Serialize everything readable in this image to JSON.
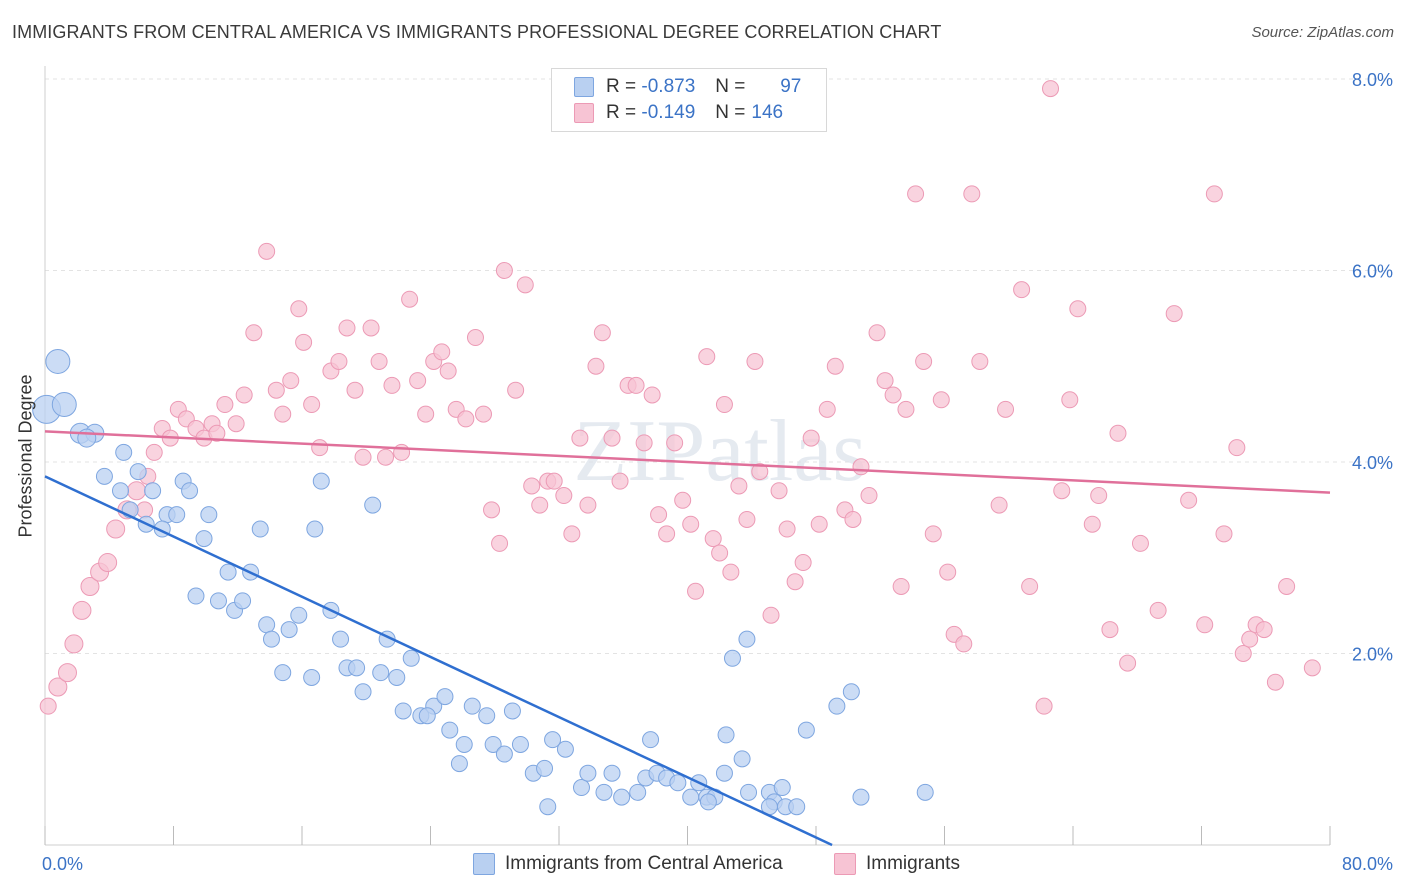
{
  "title": "IMMIGRANTS FROM CENTRAL AMERICA VS IMMIGRANTS PROFESSIONAL DEGREE CORRELATION CHART",
  "source": "Source: ZipAtlas.com",
  "legend": {
    "rows": [
      {
        "r_label": "R =",
        "r_value": "-0.873",
        "n_label": "N =",
        "n_value": "97"
      },
      {
        "r_label": "R =",
        "r_value": "-0.149",
        "n_label": "N =",
        "n_value": "146"
      }
    ]
  },
  "bottom_legend": [
    "Immigrants from Central America",
    "Immigrants"
  ],
  "watermark": "ZIPatlas",
  "chart_data": {
    "type": "scatter",
    "ylabel": "Professional Degree",
    "xlabel": "",
    "x_tick_labels": [
      "0.0%",
      "80.0%"
    ],
    "y_tick_labels": [
      "2.0%",
      "4.0%",
      "6.0%",
      "8.0%"
    ],
    "xlim": [
      0,
      80
    ],
    "ylim": [
      0,
      8
    ],
    "grid": true,
    "legend_position": "top-center",
    "colors": {
      "blue_fill": "#b9d0f1",
      "blue_stroke": "#7ea6e0",
      "blue_line": "#2f6fd0",
      "pink_fill": "#f7c4d4",
      "pink_stroke": "#ec9ab5",
      "pink_line": "#e0709a",
      "tick_text": "#3b73c6"
    },
    "series": [
      {
        "name": "Immigrants from Central America",
        "trend": {
          "x": [
            0,
            49
          ],
          "y": [
            3.85,
            0.0
          ]
        },
        "points": [
          [
            0.1,
            4.55,
            14
          ],
          [
            0.8,
            5.05,
            12
          ],
          [
            1.2,
            4.6,
            12
          ],
          [
            2.2,
            4.3,
            10
          ],
          [
            3.1,
            4.3,
            9
          ],
          [
            2.6,
            4.25,
            9
          ],
          [
            4.9,
            4.1,
            8
          ],
          [
            3.7,
            3.85,
            8
          ],
          [
            5.8,
            3.9,
            8
          ],
          [
            6.7,
            3.7,
            8
          ],
          [
            7.6,
            3.45,
            8
          ],
          [
            4.7,
            3.7,
            8
          ],
          [
            5.3,
            3.5,
            8
          ],
          [
            8.6,
            3.8,
            8
          ],
          [
            9.0,
            3.7,
            8
          ],
          [
            8.2,
            3.45,
            8
          ],
          [
            10.2,
            3.45,
            8
          ],
          [
            6.3,
            3.35,
            8
          ],
          [
            7.3,
            3.3,
            8
          ],
          [
            13.4,
            3.3,
            8
          ],
          [
            16.8,
            3.3,
            8
          ],
          [
            17.2,
            3.8,
            8
          ],
          [
            20.4,
            3.55,
            8
          ],
          [
            9.4,
            2.6,
            8
          ],
          [
            9.9,
            3.2,
            8
          ],
          [
            11.4,
            2.85,
            8
          ],
          [
            12.8,
            2.85,
            8
          ],
          [
            10.8,
            2.55,
            8
          ],
          [
            11.8,
            2.45,
            8
          ],
          [
            12.3,
            2.55,
            8
          ],
          [
            13.8,
            2.3,
            8
          ],
          [
            14.1,
            2.15,
            8
          ],
          [
            15.2,
            2.25,
            8
          ],
          [
            15.8,
            2.4,
            8
          ],
          [
            17.8,
            2.45,
            8
          ],
          [
            18.4,
            2.15,
            8
          ],
          [
            14.8,
            1.8,
            8
          ],
          [
            16.6,
            1.75,
            8
          ],
          [
            18.8,
            1.85,
            8
          ],
          [
            19.4,
            1.85,
            8
          ],
          [
            20.9,
            1.8,
            8
          ],
          [
            21.9,
            1.75,
            8
          ],
          [
            21.3,
            2.15,
            8
          ],
          [
            22.8,
            1.95,
            8
          ],
          [
            19.8,
            1.6,
            8
          ],
          [
            22.3,
            1.4,
            8
          ],
          [
            23.4,
            1.35,
            8
          ],
          [
            24.2,
            1.45,
            8
          ],
          [
            24.9,
            1.55,
            8
          ],
          [
            23.8,
            1.35,
            8
          ],
          [
            25.2,
            1.2,
            8
          ],
          [
            26.6,
            1.45,
            8
          ],
          [
            27.5,
            1.35,
            8
          ],
          [
            29.1,
            1.4,
            8
          ],
          [
            26.1,
            1.05,
            8
          ],
          [
            27.9,
            1.05,
            8
          ],
          [
            28.6,
            0.95,
            8
          ],
          [
            29.6,
            1.05,
            8
          ],
          [
            25.8,
            0.85,
            8
          ],
          [
            30.4,
            0.75,
            8
          ],
          [
            31.1,
            0.8,
            8
          ],
          [
            31.6,
            1.1,
            8
          ],
          [
            32.4,
            1.0,
            8
          ],
          [
            33.4,
            0.6,
            8
          ],
          [
            33.8,
            0.75,
            8
          ],
          [
            34.8,
            0.55,
            8
          ],
          [
            35.3,
            0.75,
            8
          ],
          [
            35.9,
            0.5,
            8
          ],
          [
            36.9,
            0.55,
            8
          ],
          [
            37.4,
            0.7,
            8
          ],
          [
            38.1,
            0.75,
            8
          ],
          [
            38.7,
            0.7,
            8
          ],
          [
            39.4,
            0.65,
            8
          ],
          [
            40.2,
            0.5,
            8
          ],
          [
            40.7,
            0.65,
            8
          ],
          [
            41.2,
            0.5,
            8
          ],
          [
            41.7,
            0.5,
            8
          ],
          [
            42.3,
            0.75,
            8
          ],
          [
            43.4,
            0.9,
            8
          ],
          [
            31.3,
            0.4,
            8
          ],
          [
            37.7,
            1.1,
            8
          ],
          [
            42.4,
            1.15,
            8
          ],
          [
            45.1,
            0.55,
            8
          ],
          [
            45.4,
            0.45,
            8
          ],
          [
            45.9,
            0.6,
            8
          ],
          [
            46.1,
            0.4,
            8
          ],
          [
            46.8,
            0.4,
            8
          ],
          [
            45.1,
            0.4,
            8
          ],
          [
            43.8,
            0.55,
            8
          ],
          [
            41.3,
            0.45,
            8
          ],
          [
            47.4,
            1.2,
            8
          ],
          [
            49.3,
            1.45,
            8
          ],
          [
            50.2,
            1.6,
            8
          ],
          [
            50.8,
            0.5,
            8
          ],
          [
            54.8,
            0.55,
            8
          ],
          [
            42.8,
            1.95,
            8
          ],
          [
            43.7,
            2.15,
            8
          ]
        ]
      },
      {
        "name": "Immigrants",
        "trend": {
          "x": [
            0,
            80
          ],
          "y": [
            4.32,
            3.68
          ]
        },
        "points": [
          [
            0.2,
            1.45,
            8
          ],
          [
            0.8,
            1.65,
            9
          ],
          [
            1.4,
            1.8,
            9
          ],
          [
            1.8,
            2.1,
            9
          ],
          [
            2.3,
            2.45,
            9
          ],
          [
            2.8,
            2.7,
            9
          ],
          [
            3.4,
            2.85,
            9
          ],
          [
            3.9,
            2.95,
            9
          ],
          [
            4.4,
            3.3,
            9
          ],
          [
            5.1,
            3.5,
            9
          ],
          [
            5.7,
            3.7,
            9
          ],
          [
            6.2,
            3.5,
            8
          ],
          [
            6.4,
            3.85,
            8
          ],
          [
            6.8,
            4.1,
            8
          ],
          [
            7.3,
            4.35,
            8
          ],
          [
            7.8,
            4.25,
            8
          ],
          [
            8.3,
            4.55,
            8
          ],
          [
            8.8,
            4.45,
            8
          ],
          [
            9.4,
            4.35,
            8
          ],
          [
            9.9,
            4.25,
            8
          ],
          [
            10.4,
            4.4,
            8
          ],
          [
            10.7,
            4.3,
            8
          ],
          [
            11.2,
            4.6,
            8
          ],
          [
            11.9,
            4.4,
            8
          ],
          [
            12.4,
            4.7,
            8
          ],
          [
            13.0,
            5.35,
            8
          ],
          [
            13.8,
            6.2,
            8
          ],
          [
            14.4,
            4.75,
            8
          ],
          [
            14.8,
            4.5,
            8
          ],
          [
            15.3,
            4.85,
            8
          ],
          [
            15.8,
            5.6,
            8
          ],
          [
            16.1,
            5.25,
            8
          ],
          [
            16.6,
            4.6,
            8
          ],
          [
            17.1,
            4.15,
            8
          ],
          [
            17.8,
            4.95,
            8
          ],
          [
            18.3,
            5.05,
            8
          ],
          [
            18.8,
            5.4,
            8
          ],
          [
            19.3,
            4.75,
            8
          ],
          [
            19.8,
            4.05,
            8
          ],
          [
            20.3,
            5.4,
            8
          ],
          [
            20.8,
            5.05,
            8
          ],
          [
            21.2,
            4.05,
            8
          ],
          [
            21.6,
            4.8,
            8
          ],
          [
            22.2,
            4.1,
            8
          ],
          [
            22.7,
            5.7,
            8
          ],
          [
            23.2,
            4.85,
            8
          ],
          [
            23.7,
            4.5,
            8
          ],
          [
            24.2,
            5.05,
            8
          ],
          [
            24.7,
            5.15,
            8
          ],
          [
            25.1,
            4.95,
            8
          ],
          [
            25.6,
            4.55,
            8
          ],
          [
            26.2,
            4.45,
            8
          ],
          [
            26.8,
            5.3,
            8
          ],
          [
            27.3,
            4.5,
            8
          ],
          [
            27.8,
            3.5,
            8
          ],
          [
            28.3,
            3.15,
            8
          ],
          [
            28.6,
            6.0,
            8
          ],
          [
            29.3,
            4.75,
            8
          ],
          [
            29.9,
            5.85,
            8
          ],
          [
            30.3,
            3.75,
            8
          ],
          [
            30.8,
            3.55,
            8
          ],
          [
            31.3,
            3.8,
            8
          ],
          [
            31.7,
            3.8,
            8
          ],
          [
            32.3,
            3.65,
            8
          ],
          [
            32.8,
            3.25,
            8
          ],
          [
            33.3,
            4.25,
            8
          ],
          [
            33.8,
            3.55,
            8
          ],
          [
            34.3,
            5.0,
            8
          ],
          [
            34.7,
            5.35,
            8
          ],
          [
            35.3,
            4.25,
            8
          ],
          [
            35.8,
            3.8,
            8
          ],
          [
            36.3,
            4.8,
            8
          ],
          [
            36.8,
            4.8,
            8
          ],
          [
            37.3,
            4.2,
            8
          ],
          [
            37.8,
            4.7,
            8
          ],
          [
            38.2,
            3.45,
            8
          ],
          [
            38.7,
            3.25,
            8
          ],
          [
            39.2,
            4.2,
            8
          ],
          [
            39.7,
            3.6,
            8
          ],
          [
            40.2,
            3.35,
            8
          ],
          [
            40.5,
            2.65,
            8
          ],
          [
            41.2,
            5.1,
            8
          ],
          [
            41.6,
            3.2,
            8
          ],
          [
            42.0,
            3.05,
            8
          ],
          [
            42.3,
            4.6,
            8
          ],
          [
            42.7,
            2.85,
            8
          ],
          [
            43.2,
            3.75,
            8
          ],
          [
            43.7,
            3.4,
            8
          ],
          [
            44.2,
            5.05,
            8
          ],
          [
            44.5,
            3.9,
            8
          ],
          [
            45.2,
            2.4,
            8
          ],
          [
            45.7,
            3.7,
            8
          ],
          [
            46.2,
            3.3,
            8
          ],
          [
            46.7,
            2.75,
            8
          ],
          [
            47.2,
            2.95,
            8
          ],
          [
            47.7,
            4.25,
            8
          ],
          [
            48.2,
            3.35,
            8
          ],
          [
            48.7,
            4.55,
            8
          ],
          [
            49.2,
            5.0,
            8
          ],
          [
            49.8,
            3.5,
            8
          ],
          [
            50.3,
            3.4,
            8
          ],
          [
            50.8,
            3.95,
            8
          ],
          [
            51.3,
            3.65,
            8
          ],
          [
            51.8,
            5.35,
            8
          ],
          [
            52.3,
            4.85,
            8
          ],
          [
            52.8,
            4.7,
            8
          ],
          [
            53.3,
            2.7,
            8
          ],
          [
            53.6,
            4.55,
            8
          ],
          [
            54.2,
            6.8,
            8
          ],
          [
            54.7,
            5.05,
            8
          ],
          [
            55.3,
            3.25,
            8
          ],
          [
            55.8,
            4.65,
            8
          ],
          [
            56.2,
            2.85,
            8
          ],
          [
            56.6,
            2.2,
            8
          ],
          [
            57.2,
            2.1,
            8
          ],
          [
            57.7,
            6.8,
            8
          ],
          [
            58.2,
            5.05,
            8
          ],
          [
            59.4,
            3.55,
            8
          ],
          [
            59.8,
            4.55,
            8
          ],
          [
            60.8,
            5.8,
            8
          ],
          [
            61.3,
            2.7,
            8
          ],
          [
            62.2,
            1.45,
            8
          ],
          [
            62.6,
            7.9,
            8
          ],
          [
            63.3,
            3.7,
            8
          ],
          [
            63.8,
            4.65,
            8
          ],
          [
            64.3,
            5.6,
            8
          ],
          [
            65.2,
            3.35,
            8
          ],
          [
            65.6,
            3.65,
            8
          ],
          [
            66.3,
            2.25,
            8
          ],
          [
            66.8,
            4.3,
            8
          ],
          [
            67.4,
            1.9,
            8
          ],
          [
            68.2,
            3.15,
            8
          ],
          [
            69.3,
            2.45,
            8
          ],
          [
            70.3,
            5.55,
            8
          ],
          [
            71.2,
            3.6,
            8
          ],
          [
            72.2,
            2.3,
            8
          ],
          [
            72.8,
            6.8,
            8
          ],
          [
            73.4,
            3.25,
            8
          ],
          [
            74.2,
            4.15,
            8
          ],
          [
            74.6,
            2.0,
            8
          ],
          [
            75.0,
            2.15,
            8
          ],
          [
            75.4,
            2.3,
            8
          ],
          [
            75.9,
            2.25,
            8
          ],
          [
            76.6,
            1.7,
            8
          ],
          [
            77.3,
            2.7,
            8
          ],
          [
            78.9,
            1.85,
            8
          ]
        ]
      }
    ]
  }
}
